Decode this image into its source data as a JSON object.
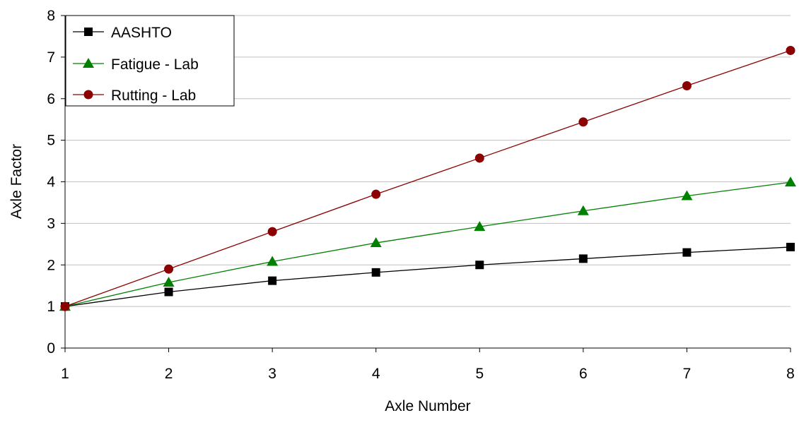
{
  "chart_data": {
    "type": "line",
    "title": "",
    "xlabel": "Axle Number",
    "ylabel": "Axle Factor",
    "x": [
      1,
      2,
      3,
      4,
      5,
      6,
      7,
      8
    ],
    "xlim": [
      1,
      8
    ],
    "ylim": [
      0,
      8
    ],
    "yticks": [
      0,
      1,
      2,
      3,
      4,
      5,
      6,
      7,
      8
    ],
    "grid": "horizontal",
    "legend_position": "top-left",
    "series": [
      {
        "name": "AASHTO",
        "values": [
          1.0,
          1.35,
          1.62,
          1.82,
          2.0,
          2.15,
          2.3,
          2.43
        ],
        "color": "#000000",
        "marker": "square"
      },
      {
        "name": "Fatigue - Lab",
        "values": [
          1.0,
          1.58,
          2.08,
          2.53,
          2.92,
          3.3,
          3.66,
          3.99
        ],
        "color": "#008000",
        "marker": "triangle"
      },
      {
        "name": "Rutting - Lab",
        "values": [
          1.0,
          1.9,
          2.8,
          3.7,
          4.57,
          5.44,
          6.31,
          7.16
        ],
        "color": "#8b0000",
        "marker": "circle"
      }
    ]
  }
}
